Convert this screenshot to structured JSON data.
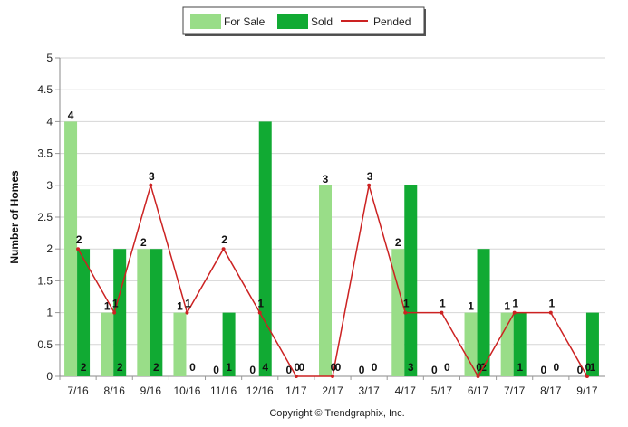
{
  "chart_data": {
    "type": "bar",
    "categories": [
      "7/16",
      "8/16",
      "9/16",
      "10/16",
      "11/16",
      "12/16",
      "1/17",
      "2/17",
      "3/17",
      "4/17",
      "5/17",
      "6/17",
      "7/17",
      "8/17",
      "9/17"
    ],
    "series": [
      {
        "name": "For Sale",
        "type": "bar",
        "color": "#99dd88",
        "values": [
          4,
          1,
          2,
          1,
          0,
          0,
          0,
          3,
          0,
          2,
          0,
          1,
          1,
          0,
          0
        ]
      },
      {
        "name": "Sold",
        "type": "bar",
        "color": "#11aa33",
        "values": [
          2,
          2,
          2,
          0,
          1,
          4,
          0,
          0,
          0,
          3,
          0,
          2,
          1,
          0,
          1
        ]
      },
      {
        "name": "Pended",
        "type": "line",
        "color": "#cc2222",
        "values": [
          2,
          1,
          3,
          1,
          2,
          1,
          0,
          0,
          3,
          1,
          1,
          0,
          1,
          1,
          0
        ]
      }
    ],
    "ylabel": "Number of Homes",
    "xlabel": "",
    "ylim": [
      0,
      5
    ],
    "yticks": [
      0,
      0.5,
      1,
      1.5,
      2,
      2.5,
      3,
      3.5,
      4,
      4.5,
      5
    ],
    "ytick_labels": [
      "0",
      "0.5",
      "1",
      "1.5",
      "2",
      "2.5",
      "3",
      "3.5",
      "4",
      "4.5",
      "5"
    ],
    "legend_position": "top-center",
    "grid": true
  },
  "copyright": "Copyright © Trendgraphix, Inc."
}
